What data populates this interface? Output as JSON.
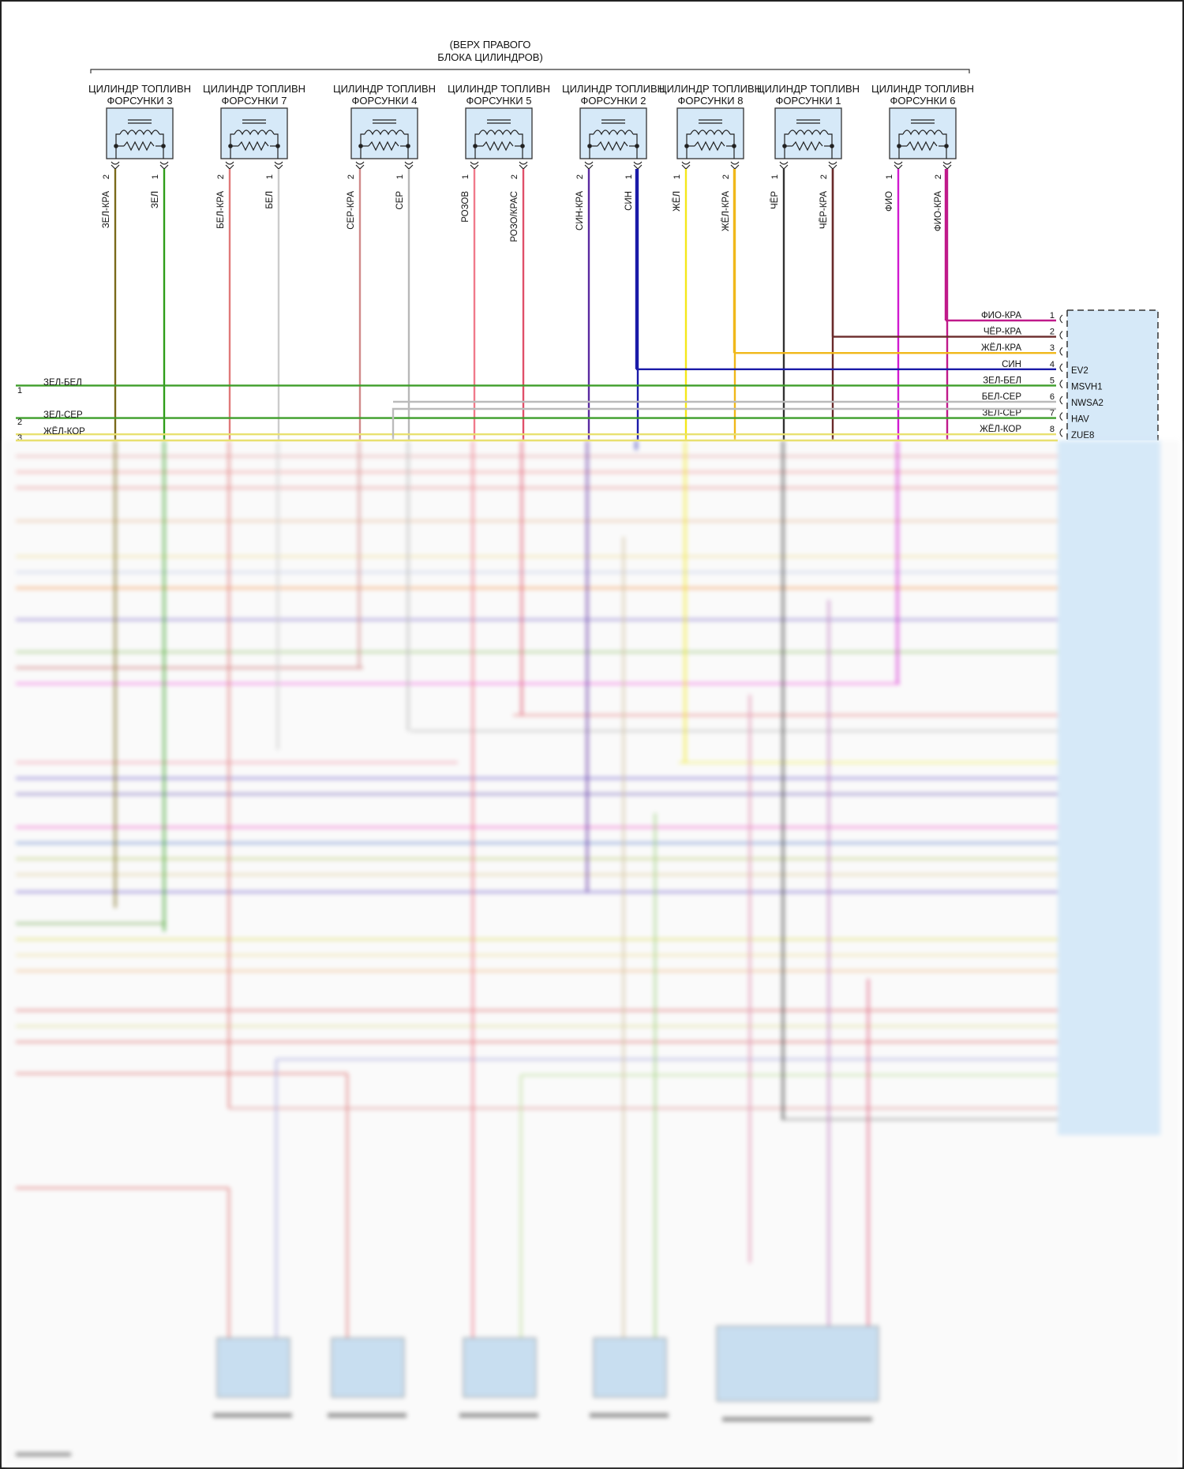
{
  "header": {
    "bank_line1": "(ВЕРХ ПРАВОГО",
    "bank_line2": "БЛОКА ЦИЛИНДРОВ)"
  },
  "injectors": [
    {
      "title1": "ЦИЛИНДР ТОПЛИВН",
      "title2": "ФОРСУНКИ 3",
      "left_wire": "ЗЕЛ-КРА",
      "left_pin": "2",
      "right_wire": "ЗЕЛ",
      "right_pin": "1",
      "left_color": "#7a6a1a",
      "right_color": "#2e9e1a"
    },
    {
      "title1": "ЦИЛИНДР ТОПЛИВН",
      "title2": "ФОРСУНКИ 7",
      "left_wire": "БЕЛ-КРА",
      "left_pin": "2",
      "right_wire": "БЕЛ",
      "right_pin": "1",
      "left_color": "#e07a7a",
      "right_color": "#cccccc"
    },
    {
      "title1": "ЦИЛИНДР ТОПЛИВН",
      "title2": "ФОРСУНКИ 4",
      "left_wire": "СЕР-КРА",
      "left_pin": "2",
      "right_wire": "СЕР",
      "right_pin": "1",
      "left_color": "#d08a8a",
      "right_color": "#b8b8b8"
    },
    {
      "title1": "ЦИЛИНДР ТОПЛИВН",
      "title2": "ФОРСУНКИ 5",
      "left_wire": "РОЗОВ",
      "left_pin": "1",
      "right_wire": "РОЗО/КРАС",
      "right_pin": "2",
      "left_color": "#f07a8a",
      "right_color": "#e0506a"
    },
    {
      "title1": "ЦИЛИНДР ТОПЛИВН",
      "title2": "ФОРСУНКИ 2",
      "left_wire": "СИН-КРА",
      "left_pin": "2",
      "right_wire": "СИН",
      "right_pin": "1",
      "left_color": "#5a2aa0",
      "right_color": "#1a1aa8"
    },
    {
      "title1": "ЦИЛИНДР ТОПЛИВН",
      "title2": "ФОРСУНКИ 8",
      "left_wire": "ЖЁЛ",
      "left_pin": "1",
      "right_wire": "ЖЁЛ-КРА",
      "right_pin": "2",
      "left_color": "#f4e81a",
      "right_color": "#f0b81a"
    },
    {
      "title1": "ЦИЛИНДР ТОПЛИВН",
      "title2": "ФОРСУНКИ 1",
      "left_wire": "ЧЁР",
      "left_pin": "1",
      "right_wire": "ЧЁР-КРА",
      "right_pin": "2",
      "left_color": "#333333",
      "right_color": "#6a2a2a"
    },
    {
      "title1": "ЦИЛИНДР ТОПЛИВН",
      "title2": "ФОРСУНКИ 6",
      "left_wire": "ФИО",
      "left_pin": "1",
      "right_wire": "ФИО-КРА",
      "right_pin": "2",
      "left_color": "#d01ad0",
      "right_color": "#c01a8a"
    }
  ],
  "ecu_pins": [
    {
      "label": "ФИО-КРА",
      "num": "1",
      "name": ""
    },
    {
      "label": "ЧЁР-КРА",
      "num": "2",
      "name": ""
    },
    {
      "label": "ЖЁЛ-КРА",
      "num": "3",
      "name": ""
    },
    {
      "label": "СИН",
      "num": "4",
      "name": "EV2"
    },
    {
      "label": "ЗЕЛ-БЕЛ",
      "num": "5",
      "name": "MSVH1"
    },
    {
      "label": "БЕЛ-СЕР",
      "num": "6",
      "name": "NWSA2"
    },
    {
      "label": "ЗЕЛ-СЕР",
      "num": "7",
      "name": "HAV"
    },
    {
      "label": "ЖЁЛ-КОР",
      "num": "8",
      "name": "ZUE8"
    }
  ],
  "left_wires": [
    {
      "num": "1",
      "label": "ЗЕЛ-БЕЛ"
    },
    {
      "num": "2",
      "label": "ЗЕЛ-СЕР"
    },
    {
      "num": "3",
      "label": "ЖЁЛ-КОР"
    }
  ]
}
